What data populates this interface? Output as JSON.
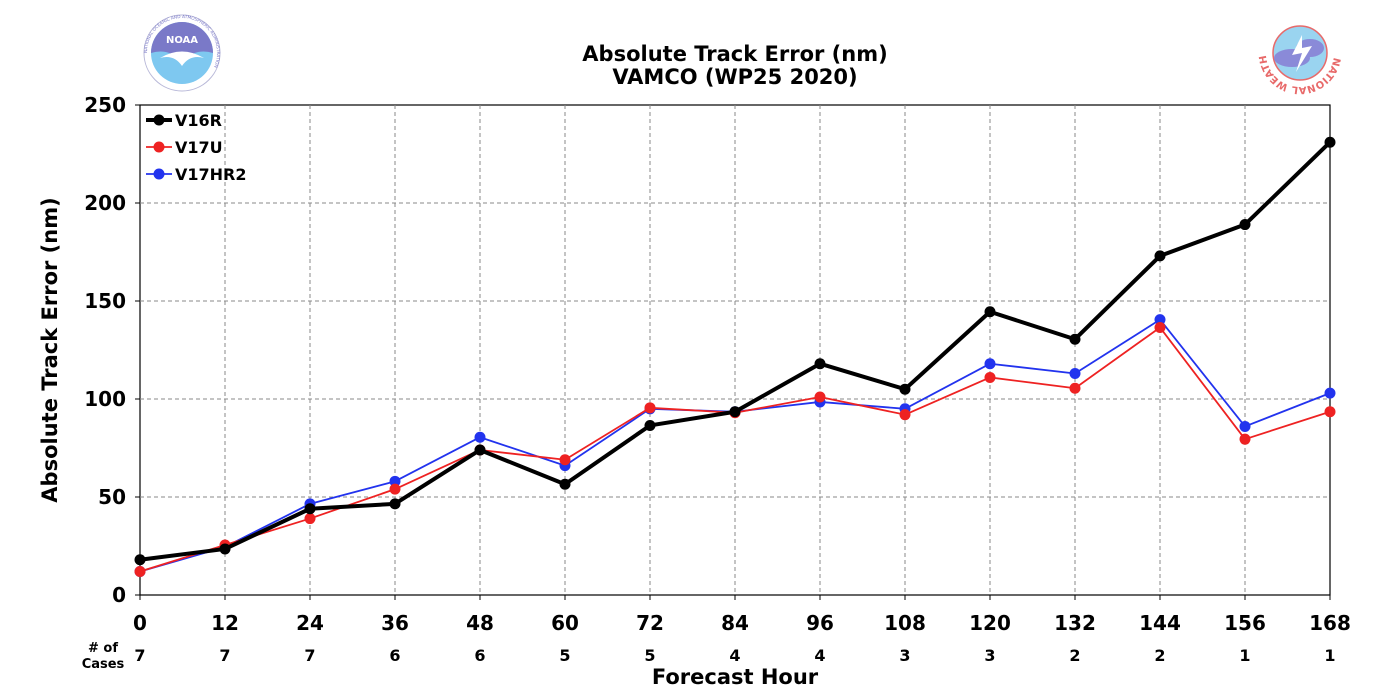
{
  "chart_data": {
    "type": "line",
    "title": "Absolute Track Error (nm)",
    "subtitle": "VAMCO (WP25 2020)",
    "xlabel": "Forecast Hour",
    "ylabel": "Absolute Track Error (nm)",
    "x": [
      0,
      12,
      24,
      36,
      48,
      60,
      72,
      84,
      96,
      108,
      120,
      132,
      144,
      156,
      168
    ],
    "xlim": [
      0,
      168
    ],
    "ylim": [
      0,
      250
    ],
    "yticks": [
      0,
      50,
      100,
      150,
      200,
      250
    ],
    "grid": true,
    "legend_position": "top-left",
    "cases_label": "# of Cases",
    "cases": [
      7,
      7,
      7,
      6,
      6,
      5,
      5,
      4,
      4,
      3,
      3,
      2,
      2,
      1,
      1
    ],
    "series": [
      {
        "name": "V16R",
        "color": "#000000",
        "values": [
          18,
          23.5,
          44,
          46.5,
          74,
          56.5,
          86.5,
          93.5,
          118,
          105,
          144.5,
          130.5,
          173,
          189,
          231
        ]
      },
      {
        "name": "V17U",
        "color": "#ee2222",
        "values": [
          12,
          25.5,
          39,
          54,
          74,
          69,
          95.5,
          93,
          101,
          92,
          111,
          105.5,
          136.5,
          79.5,
          93.5
        ]
      },
      {
        "name": "V17HR2",
        "color": "#2233ee",
        "values": [
          12,
          24.5,
          46.5,
          58,
          80.5,
          66,
          95,
          93.5,
          98.5,
          95,
          118,
          113,
          140.5,
          86,
          103
        ]
      }
    ]
  },
  "logos": {
    "noaa": {
      "text": "NOAA",
      "ring_text": "NATIONAL OCEANIC AND ATMOSPHERIC ADMINISTRATION",
      "colors": {
        "sky": "#7a79c8",
        "sea": "#7ec8f0"
      }
    },
    "nws": {
      "ring_text": "NATIONAL WEATHER SERVICE",
      "colors": {
        "ring": "#e86a6a",
        "cloud": "#8a8ad8",
        "sky": "#9ad4f0"
      }
    }
  }
}
